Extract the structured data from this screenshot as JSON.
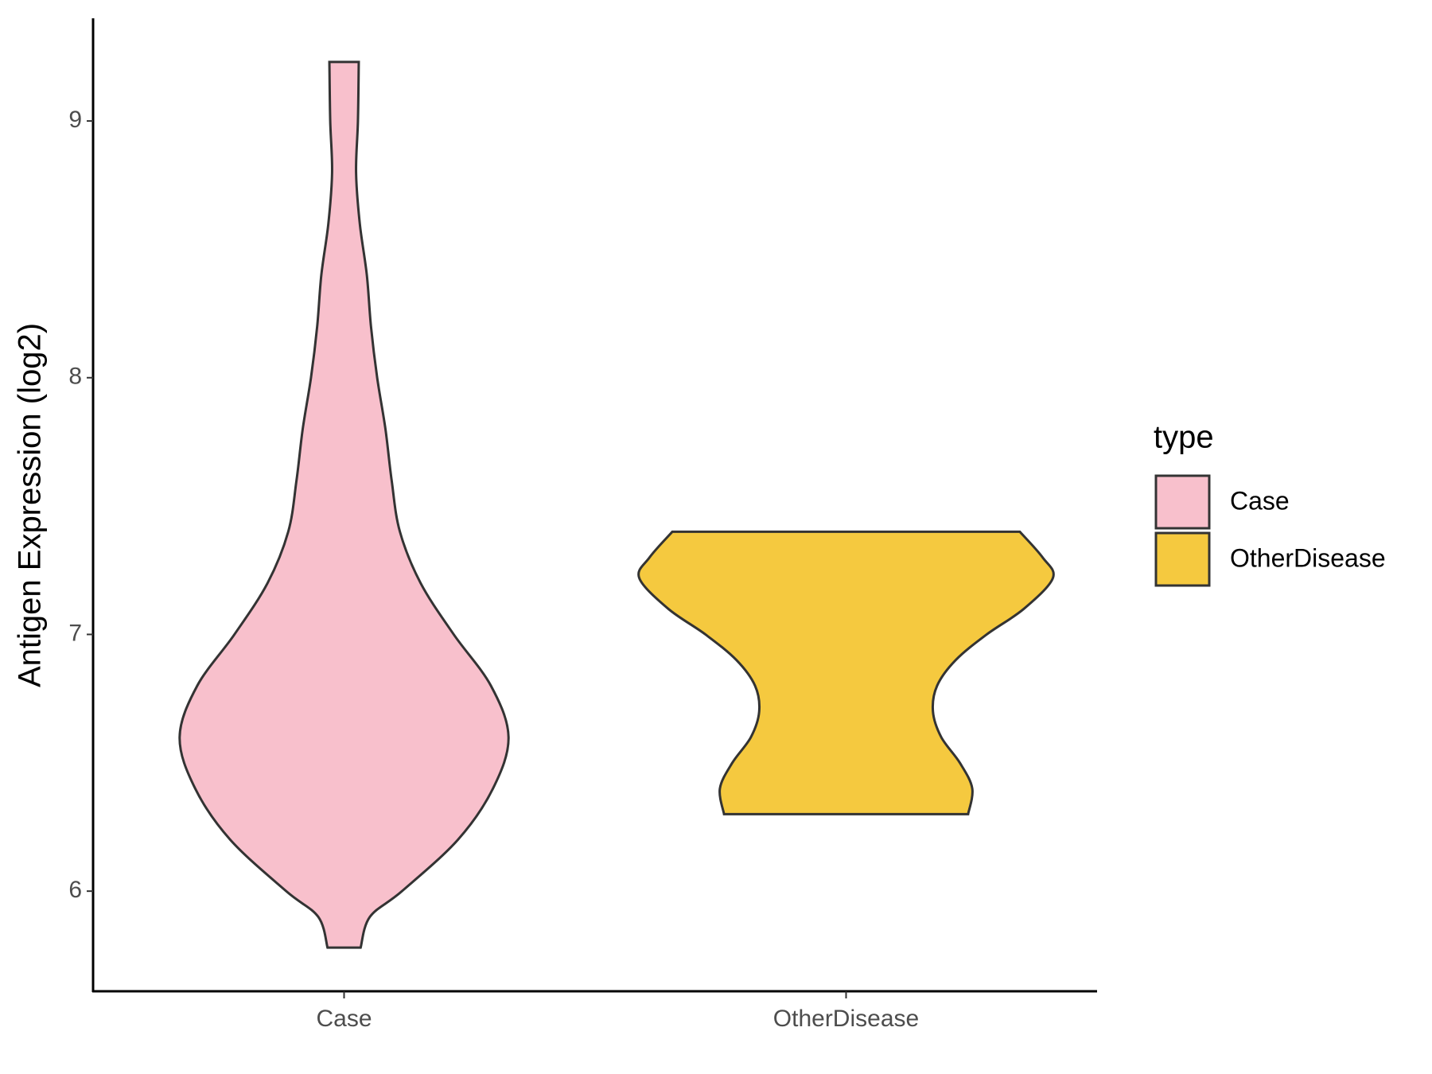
{
  "chart_data": {
    "type": "violin",
    "y_label": "Antigen Expression (log2)",
    "categories": [
      "Case",
      "OtherDisease"
    ],
    "ylim": [
      5.61,
      9.4
    ],
    "yticks": [
      6,
      7,
      8,
      9
    ],
    "legend_title": "type",
    "legend_position": "right",
    "series": [
      {
        "name": "Case",
        "color": "#f8c0cc",
        "y": [
          5.78,
          5.9,
          6.0,
          6.2,
          6.4,
          6.6,
          6.8,
          7.0,
          7.2,
          7.4,
          7.6,
          7.8,
          8.0,
          8.2,
          8.4,
          8.6,
          8.8,
          9.0,
          9.23
        ],
        "density": [
          0.08,
          0.125,
          0.28,
          0.55,
          0.72,
          0.795,
          0.71,
          0.53,
          0.37,
          0.27,
          0.23,
          0.2,
          0.16,
          0.13,
          0.11,
          0.076,
          0.058,
          0.067,
          0.071
        ]
      },
      {
        "name": "OtherDisease",
        "color": "#f5c93f",
        "y": [
          6.3,
          6.4,
          6.5,
          6.6,
          6.7,
          6.8,
          6.9,
          7.0,
          7.1,
          7.22,
          7.3,
          7.4
        ],
        "density": [
          0.59,
          0.61,
          0.55,
          0.46,
          0.42,
          0.44,
          0.53,
          0.68,
          0.86,
          1.0,
          0.95,
          0.84
        ]
      }
    ]
  }
}
